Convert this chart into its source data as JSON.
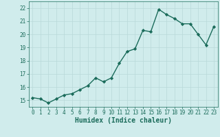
{
  "x": [
    0,
    1,
    2,
    3,
    4,
    5,
    6,
    7,
    8,
    9,
    10,
    11,
    12,
    13,
    14,
    15,
    16,
    17,
    18,
    19,
    20,
    21,
    22,
    23
  ],
  "y": [
    15.2,
    15.1,
    14.8,
    15.1,
    15.4,
    15.5,
    15.8,
    16.1,
    16.7,
    16.4,
    16.7,
    17.8,
    18.7,
    18.9,
    20.3,
    20.2,
    21.9,
    21.5,
    21.2,
    20.8,
    20.8,
    20.0,
    19.2,
    20.6
  ],
  "line_color": "#1a6b5a",
  "marker": "D",
  "marker_size": 2.2,
  "bg_color": "#d0ecec",
  "grid_color": "#b8d8d8",
  "xlabel": "Humidex (Indice chaleur)",
  "xlim": [
    -0.5,
    23.5
  ],
  "ylim": [
    14.5,
    22.5
  ],
  "yticks": [
    15,
    16,
    17,
    18,
    19,
    20,
    21,
    22
  ],
  "xticks": [
    0,
    1,
    2,
    3,
    4,
    5,
    6,
    7,
    8,
    9,
    10,
    11,
    12,
    13,
    14,
    15,
    16,
    17,
    18,
    19,
    20,
    21,
    22,
    23
  ],
  "tick_color": "#1a6b5a",
  "linewidth": 1.0,
  "tick_fontsize": 5.5,
  "xlabel_fontsize": 7.0
}
